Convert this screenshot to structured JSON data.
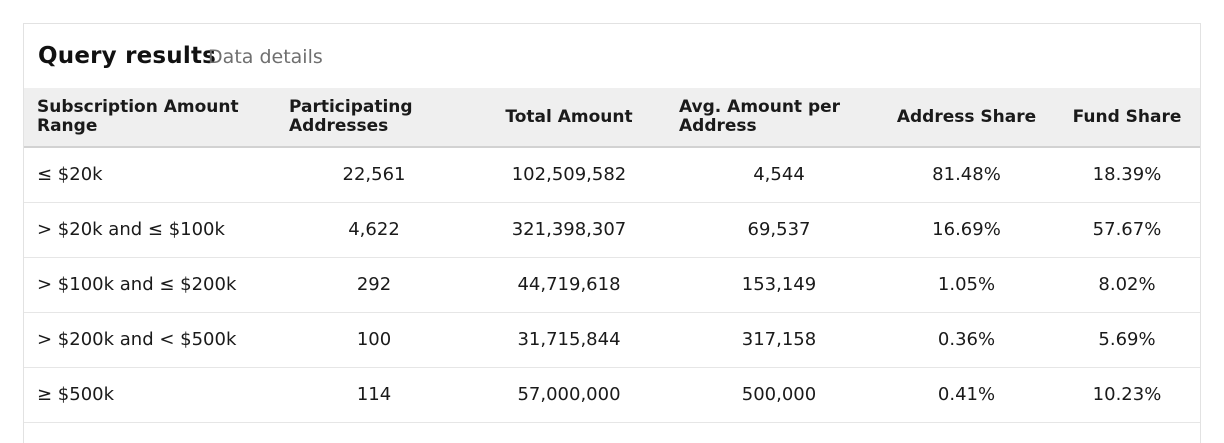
{
  "panel": {
    "title": "Query results",
    "subtitle": "Data details"
  },
  "table": {
    "columns": [
      "Subscription Amount Range",
      "Participating Addresses",
      "Total Amount",
      "Avg. Amount per Address",
      "Address Share",
      "Fund Share"
    ],
    "rows": [
      [
        "≤ $20k",
        "22,561",
        "102,509,582",
        "4,544",
        "81.48%",
        "18.39%"
      ],
      [
        "> $20k and ≤ $100k",
        "4,622",
        "321,398,307",
        "69,537",
        "16.69%",
        "57.67%"
      ],
      [
        "> $100k and ≤ $200k",
        "292",
        "44,719,618",
        "153,149",
        "1.05%",
        "8.02%"
      ],
      [
        "> $200k and < $500k",
        "100",
        "31,715,844",
        "317,158",
        "0.36%",
        "5.69%"
      ],
      [
        "≥ $500k",
        "114",
        "57,000,000",
        "500,000",
        "0.41%",
        "10.23%"
      ]
    ]
  }
}
